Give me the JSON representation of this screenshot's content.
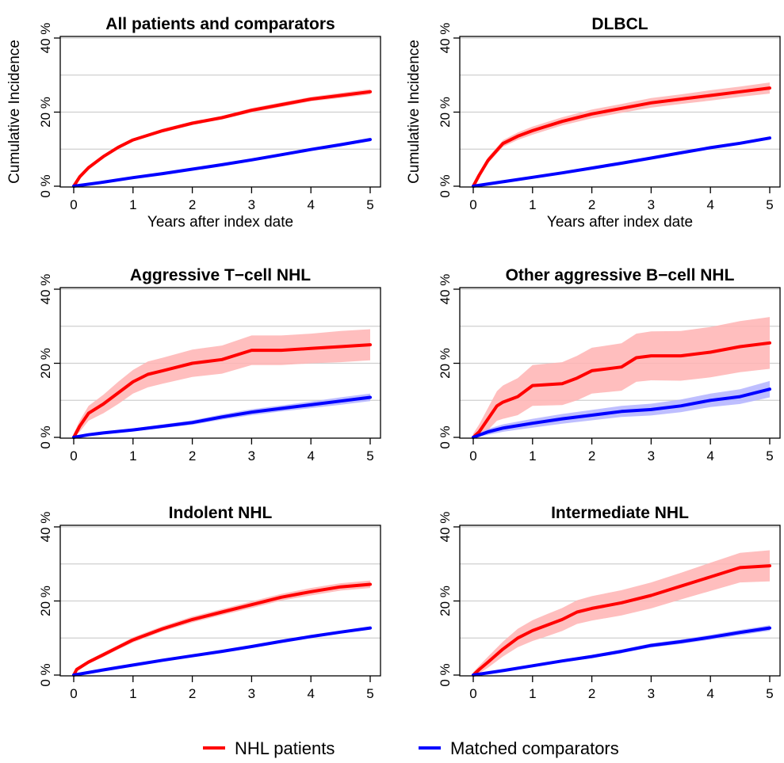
{
  "legend": [
    {
      "label": "NHL patients",
      "color": "#ff0000"
    },
    {
      "label": "Matched comparators",
      "color": "#0000ff"
    }
  ],
  "colors": {
    "nhl_line": "#ff0000",
    "nhl_band": "#ffb3b3",
    "comparator_line": "#0000ff",
    "comparator_band": "#b3b3ff",
    "grid": "#cfcfcf"
  },
  "chart_data": [
    {
      "type": "line",
      "title": "All patients and comparators",
      "xlabel": "Years after index date",
      "ylabel": "Cumulative Incidence",
      "xlim": [
        0,
        5
      ],
      "ylim": [
        0,
        40
      ],
      "xticks": [
        "0",
        "1",
        "2",
        "3",
        "4",
        "5"
      ],
      "yticks": [
        "0 %",
        "20 %",
        "40 %"
      ],
      "grid": true,
      "series": [
        {
          "name": "NHL patients",
          "x": [
            0,
            0.1,
            0.25,
            0.5,
            0.75,
            1,
            1.5,
            2,
            2.5,
            3,
            3.5,
            4,
            4.5,
            5
          ],
          "y": [
            0,
            2.5,
            5,
            8,
            10.5,
            12.5,
            15,
            17,
            18.5,
            20.5,
            22,
            23.5,
            24.5,
            25.5
          ],
          "band": [
            0.3,
            0.3,
            0.3,
            0.4,
            0.4,
            0.4,
            0.5,
            0.5,
            0.5,
            0.6,
            0.6,
            0.6,
            0.7,
            0.7
          ]
        },
        {
          "name": "Matched comparators",
          "x": [
            0,
            0.5,
            1,
            1.5,
            2,
            2.5,
            3,
            3.5,
            4,
            4.5,
            5
          ],
          "y": [
            0,
            1.1,
            2.3,
            3.4,
            4.6,
            5.8,
            7.1,
            8.5,
            9.9,
            11.2,
            12.6
          ],
          "band": [
            0.1,
            0.1,
            0.1,
            0.15,
            0.15,
            0.15,
            0.2,
            0.2,
            0.2,
            0.2,
            0.2
          ]
        }
      ]
    },
    {
      "type": "line",
      "title": "DLBCL",
      "xlabel": "Years after index date",
      "ylabel": "Cumulative Incidence",
      "xlim": [
        0,
        5
      ],
      "ylim": [
        0,
        40
      ],
      "xticks": [
        "0",
        "1",
        "2",
        "3",
        "4",
        "5"
      ],
      "yticks": [
        "0 %",
        "20 %",
        "40 %"
      ],
      "grid": true,
      "series": [
        {
          "name": "NHL patients",
          "x": [
            0,
            0.1,
            0.25,
            0.5,
            0.75,
            1,
            1.5,
            2,
            2.5,
            3,
            3.5,
            4,
            4.5,
            5
          ],
          "y": [
            0,
            3,
            7,
            11.5,
            13.5,
            15,
            17.5,
            19.5,
            21,
            22.5,
            23.5,
            24.5,
            25.5,
            26.5
          ],
          "band": [
            0.6,
            0.7,
            0.8,
            0.9,
            1,
            1.1,
            1.1,
            1.2,
            1.2,
            1.3,
            1.3,
            1.4,
            1.4,
            1.5
          ]
        },
        {
          "name": "Matched comparators",
          "x": [
            0,
            0.5,
            1,
            1.5,
            2,
            2.5,
            3,
            3.5,
            4,
            4.5,
            5
          ],
          "y": [
            0,
            1.2,
            2.4,
            3.6,
            4.9,
            6.2,
            7.6,
            9,
            10.4,
            11.6,
            13
          ],
          "band": [
            0.2,
            0.2,
            0.25,
            0.25,
            0.3,
            0.3,
            0.3,
            0.35,
            0.35,
            0.35,
            0.4
          ]
        }
      ]
    },
    {
      "type": "line",
      "title": "Aggressive T−cell NHL",
      "xlabel": "",
      "ylabel": "",
      "xlim": [
        0,
        5
      ],
      "ylim": [
        0,
        40
      ],
      "xticks": [
        "0",
        "1",
        "2",
        "3",
        "4",
        "5"
      ],
      "yticks": [
        "0 %",
        "20 %",
        "40 %"
      ],
      "grid": true,
      "series": [
        {
          "name": "NHL patients",
          "x": [
            0,
            0.1,
            0.25,
            0.5,
            0.75,
            1,
            1.25,
            1.5,
            2,
            2.5,
            3,
            3.5,
            4,
            4.5,
            5
          ],
          "y": [
            0,
            3,
            6.5,
            9,
            12,
            15,
            17,
            18,
            20,
            21,
            23.5,
            23.5,
            24,
            24.5,
            25
          ],
          "band": [
            1,
            1.5,
            2,
            2.5,
            3,
            3.2,
            3.5,
            3.5,
            3.7,
            3.8,
            4,
            4,
            4,
            4.2,
            4.2
          ]
        },
        {
          "name": "Matched comparators",
          "x": [
            0,
            0.25,
            0.5,
            1,
            1.5,
            2,
            2.5,
            3,
            3.5,
            4,
            4.5,
            5
          ],
          "y": [
            0,
            0.7,
            1.2,
            2,
            3,
            4,
            5.5,
            6.8,
            7.8,
            8.8,
            9.8,
            10.8
          ],
          "band": [
            0.1,
            0.2,
            0.3,
            0.4,
            0.5,
            0.6,
            0.7,
            0.8,
            0.8,
            0.9,
            1,
            1
          ]
        }
      ]
    },
    {
      "type": "line",
      "title": "Other aggressive B−cell NHL",
      "xlabel": "",
      "ylabel": "",
      "xlim": [
        0,
        5
      ],
      "ylim": [
        0,
        40
      ],
      "xticks": [
        "0",
        "1",
        "2",
        "3",
        "4",
        "5"
      ],
      "yticks": [
        "0 %",
        "20 %",
        "40 %"
      ],
      "grid": true,
      "series": [
        {
          "name": "NHL patients",
          "x": [
            0,
            0.1,
            0.25,
            0.4,
            0.5,
            0.75,
            1,
            1.5,
            1.75,
            2,
            2.5,
            2.75,
            3,
            3.5,
            4,
            4.5,
            5
          ],
          "y": [
            0,
            1.5,
            5,
            8.5,
            9.5,
            11,
            14,
            14.5,
            16,
            18,
            19,
            21.5,
            22,
            22,
            23,
            24.5,
            25.5
          ],
          "band": [
            1,
            2,
            3,
            4,
            4.5,
            5,
            5.5,
            5.8,
            6,
            6.2,
            6.4,
            6.5,
            6.6,
            6.7,
            6.8,
            6.9,
            7
          ]
        },
        {
          "name": "Matched comparators",
          "x": [
            0,
            0.25,
            0.5,
            1,
            1.5,
            2,
            2.5,
            3,
            3.5,
            4,
            4.5,
            5
          ],
          "y": [
            0,
            1.5,
            2.5,
            3.8,
            5,
            6,
            7,
            7.5,
            8.5,
            10,
            11,
            13
          ],
          "band": [
            0.5,
            0.8,
            1,
            1.2,
            1.3,
            1.4,
            1.5,
            1.6,
            1.7,
            1.8,
            2,
            2.2
          ]
        }
      ]
    },
    {
      "type": "line",
      "title": "Indolent NHL",
      "xlabel": "",
      "ylabel": "",
      "xlim": [
        0,
        5
      ],
      "ylim": [
        0,
        40
      ],
      "xticks": [
        "0",
        "1",
        "2",
        "3",
        "4",
        "5"
      ],
      "yticks": [
        "0 %",
        "20 %",
        "40 %"
      ],
      "grid": true,
      "series": [
        {
          "name": "NHL patients",
          "x": [
            0,
            0.05,
            0.25,
            0.5,
            0.75,
            1,
            1.5,
            2,
            2.5,
            3,
            3.5,
            4,
            4.5,
            5
          ],
          "y": [
            0,
            1.5,
            3.5,
            5.5,
            7.5,
            9.5,
            12.5,
            15,
            17,
            19,
            21,
            22.5,
            23.8,
            24.5
          ],
          "band": [
            0.4,
            0.5,
            0.5,
            0.6,
            0.6,
            0.7,
            0.7,
            0.8,
            0.8,
            0.9,
            0.9,
            1,
            1,
            1
          ]
        },
        {
          "name": "Matched comparators",
          "x": [
            0,
            0.5,
            1,
            1.5,
            2,
            2.5,
            3,
            3.5,
            4,
            4.5,
            5
          ],
          "y": [
            0,
            1.4,
            2.7,
            4,
            5.2,
            6.4,
            7.7,
            9.1,
            10.4,
            11.6,
            12.7
          ],
          "band": [
            0.1,
            0.1,
            0.15,
            0.15,
            0.2,
            0.2,
            0.2,
            0.25,
            0.25,
            0.25,
            0.3
          ]
        }
      ]
    },
    {
      "type": "line",
      "title": "Intermediate NHL",
      "xlabel": "",
      "ylabel": "",
      "xlim": [
        0,
        5
      ],
      "ylim": [
        0,
        40
      ],
      "xticks": [
        "0",
        "1",
        "2",
        "3",
        "4",
        "5"
      ],
      "yticks": [
        "0 %",
        "20 %",
        "40 %"
      ],
      "grid": true,
      "series": [
        {
          "name": "NHL patients",
          "x": [
            0,
            0.1,
            0.25,
            0.5,
            0.75,
            1,
            1.25,
            1.5,
            1.75,
            2,
            2.5,
            3,
            3.5,
            4,
            4.5,
            5
          ],
          "y": [
            0,
            1.5,
            3.5,
            7,
            10,
            12,
            13.5,
            15,
            17,
            18,
            19.5,
            21.5,
            24,
            26.5,
            29,
            29.5
          ],
          "band": [
            0.8,
            1,
            1.5,
            2,
            2.5,
            2.8,
            3,
            3.1,
            3.2,
            3.3,
            3.4,
            3.5,
            3.6,
            3.8,
            4,
            4.2
          ]
        },
        {
          "name": "Matched comparators",
          "x": [
            0,
            0.5,
            1,
            1.5,
            2,
            2.5,
            3,
            3.5,
            4,
            4.5,
            5
          ],
          "y": [
            0,
            1.2,
            2.5,
            3.8,
            5,
            6.4,
            8,
            9,
            10.2,
            11.5,
            12.7
          ],
          "band": [
            0.2,
            0.3,
            0.35,
            0.4,
            0.45,
            0.5,
            0.55,
            0.6,
            0.65,
            0.7,
            0.75
          ]
        }
      ]
    }
  ]
}
